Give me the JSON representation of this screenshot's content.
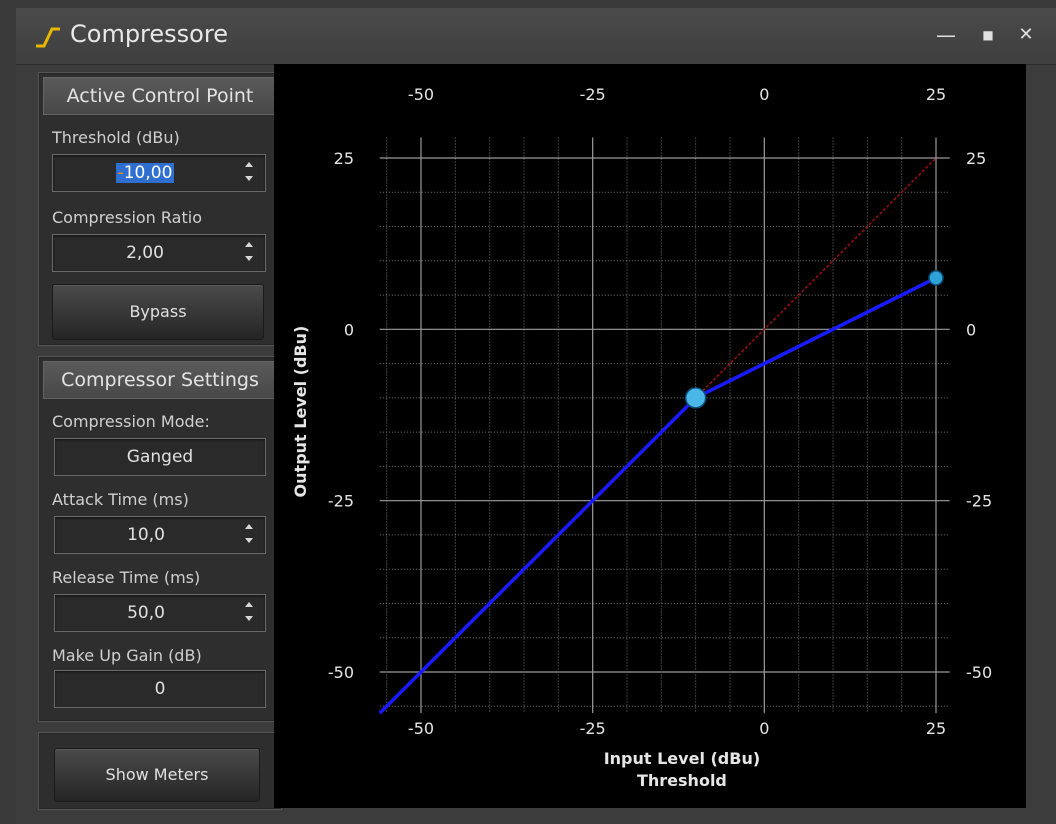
{
  "window": {
    "title": "Compressore",
    "minimize": "—",
    "maximize": "■",
    "close": "✕"
  },
  "active_control_point": {
    "header": "Active Control Point",
    "threshold_label": "Threshold (dBu)",
    "threshold_prefix": "-",
    "threshold_value": "10,00",
    "ratio_label": "Compression Ratio",
    "ratio_value": "2,00",
    "bypass_label": "Bypass"
  },
  "compressor_settings": {
    "header": "Compressor Settings",
    "mode_label": "Compression Mode:",
    "mode_value": "Ganged",
    "attack_label": "Attack Time (ms)",
    "attack_value": "10,0",
    "release_label": "Release Time (ms)",
    "release_value": "50,0",
    "makeup_label": "Make Up Gain (dB)",
    "makeup_value": "0"
  },
  "show_meters_label": "Show Meters",
  "chart_data": {
    "type": "line",
    "xlabel": "Input Level (dBu)",
    "xlabel2": "Threshold",
    "ylabel": "Output Level (dBu)",
    "xlim": [
      -60,
      30
    ],
    "ylim": [
      -60,
      30
    ],
    "x_ticks": [
      -50,
      -25,
      0,
      25
    ],
    "y_ticks": [
      -50,
      -25,
      0,
      25
    ],
    "x_tick_labels": [
      "-50",
      "-25",
      "0",
      "25"
    ],
    "y_tick_labels": [
      "-50",
      "-25",
      "0",
      "25"
    ],
    "grid": true,
    "series": [
      {
        "style": "compression-curve",
        "color": "#1a1aff",
        "x": [
          -56,
          -10,
          25
        ],
        "y": [
          -56,
          -10,
          7.5
        ]
      },
      {
        "style": "unity-reference",
        "color": "#a01010",
        "x": [
          -10,
          25
        ],
        "y": [
          -10,
          25
        ]
      }
    ],
    "control_points": [
      {
        "x": -10,
        "y": -10,
        "active": true
      },
      {
        "x": 25,
        "y": 7.5,
        "active": false
      }
    ]
  }
}
